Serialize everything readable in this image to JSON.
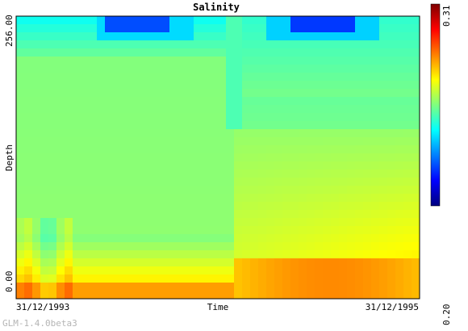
{
  "chart_data": {
    "type": "heatmap",
    "title": "Salinity",
    "xlabel": "Time",
    "ylabel": "Depth",
    "x_range": [
      "31/12/1993",
      "31/12/1995"
    ],
    "x_ticks": [
      "31/12/1993",
      "31/12/1995"
    ],
    "y_range": [
      0.0,
      256.0
    ],
    "y_ticks": [
      "0.00",
      "256.00"
    ],
    "colorbar": {
      "min": 0.2,
      "max": 0.31,
      "min_label": "0.20",
      "max_label": "0.31",
      "colors": [
        "#00007f",
        "#0000ff",
        "#007fff",
        "#00ffff",
        "#7fff7f",
        "#ffff00",
        "#ff7f00",
        "#ff0000",
        "#7f0000"
      ]
    },
    "grid": false,
    "description_values": {
      "time_fraction": [
        0.0,
        0.04,
        0.08,
        0.12,
        0.16,
        0.2,
        0.24,
        0.28,
        0.32,
        0.36,
        0.4,
        0.44,
        0.48,
        0.52,
        0.54,
        0.58,
        0.62,
        0.66,
        0.7,
        0.74,
        0.78,
        0.82,
        0.86,
        0.9,
        0.94,
        1.0
      ]
    }
  },
  "footer": {
    "version": "GLM-1.4.0beta3"
  }
}
